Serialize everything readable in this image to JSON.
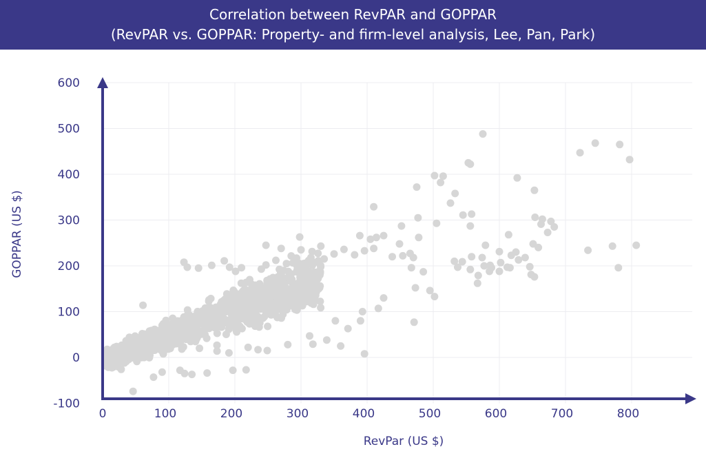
{
  "chart_data": {
    "type": "scatter",
    "title": "Correlation between RevPAR and GOPPAR",
    "subtitle": "(RevPAR vs. GOPPAR: Property- and firm-level analysis, Lee, Pan, Park)",
    "xlabel": "RevPar (US $)",
    "ylabel": "GOPPAR (US $)",
    "xlim": [
      0,
      880
    ],
    "ylim": [
      -100,
      600
    ],
    "xticks": [
      0,
      100,
      200,
      300,
      400,
      500,
      600,
      700,
      800
    ],
    "yticks": [
      -100,
      0,
      100,
      200,
      300,
      400,
      500,
      600
    ],
    "grid": true,
    "point_color": "#d6d6d6",
    "accent_color": "#3a3888",
    "cluster_note_hidden": {
      "n": 1400,
      "x_range": [
        5,
        330
      ],
      "slope": 0.55,
      "intercept": -6
    },
    "series": [
      {
        "points": [
          [
            575,
            488
          ],
          [
            745,
            468
          ],
          [
            782,
            465
          ],
          [
            722,
            447
          ],
          [
            797,
            432
          ],
          [
            553,
            425
          ],
          [
            556,
            422
          ],
          [
            502,
            397
          ],
          [
            515,
            396
          ],
          [
            511,
            382
          ],
          [
            627,
            392
          ],
          [
            475,
            372
          ],
          [
            533,
            358
          ],
          [
            653,
            365
          ],
          [
            526,
            337
          ],
          [
            410,
            329
          ],
          [
            545,
            311
          ],
          [
            558,
            313
          ],
          [
            654,
            306
          ],
          [
            477,
            305
          ],
          [
            665,
            302
          ],
          [
            452,
            287
          ],
          [
            663,
            291
          ],
          [
            678,
            297
          ],
          [
            683,
            285
          ],
          [
            505,
            293
          ],
          [
            556,
            287
          ],
          [
            673,
            273
          ],
          [
            298,
            263
          ],
          [
            425,
            266
          ],
          [
            389,
            266
          ],
          [
            414,
            262
          ],
          [
            405,
            258
          ],
          [
            478,
            262
          ],
          [
            614,
            268
          ],
          [
            247,
            245
          ],
          [
            330,
            243
          ],
          [
            270,
            238
          ],
          [
            449,
            248
          ],
          [
            579,
            245
          ],
          [
            651,
            248
          ],
          [
            659,
            240
          ],
          [
            734,
            234
          ],
          [
            771,
            243
          ],
          [
            807,
            245
          ],
          [
            600,
            231
          ],
          [
            625,
            230
          ],
          [
            618,
            223
          ],
          [
            629,
            213
          ],
          [
            639,
            218
          ],
          [
            558,
            220
          ],
          [
            574,
            218
          ],
          [
            532,
            210
          ],
          [
            544,
            209
          ],
          [
            602,
            207
          ],
          [
            612,
            197
          ],
          [
            616,
            196
          ],
          [
            586,
            201
          ],
          [
            577,
            200
          ],
          [
            556,
            192
          ],
          [
            537,
            197
          ],
          [
            568,
            179
          ],
          [
            585,
            188
          ],
          [
            600,
            188
          ],
          [
            588,
            196
          ],
          [
            646,
            198
          ],
          [
            653,
            176
          ],
          [
            648,
            181
          ],
          [
            780,
            196
          ],
          [
            467,
            196
          ],
          [
            485,
            187
          ],
          [
            495,
            146
          ],
          [
            502,
            133
          ],
          [
            567,
            162
          ],
          [
            473,
            152
          ],
          [
            438,
            220
          ],
          [
            454,
            222
          ],
          [
            470,
            218
          ],
          [
            465,
            227
          ],
          [
            123,
            208
          ],
          [
            184,
            211
          ],
          [
            192,
            197
          ],
          [
            201,
            188
          ],
          [
            210,
            196
          ],
          [
            145,
            195
          ],
          [
            165,
            201
          ],
          [
            128,
            197
          ],
          [
            240,
            193
          ],
          [
            247,
            202
          ],
          [
            61,
            114
          ],
          [
            471,
            77
          ],
          [
            390,
            80
          ],
          [
            396,
            8
          ],
          [
            360,
            25
          ],
          [
            371,
            63
          ],
          [
            352,
            80
          ],
          [
            393,
            100
          ],
          [
            425,
            130
          ],
          [
            417,
            107
          ],
          [
            90,
            -32
          ],
          [
            77,
            -43
          ],
          [
            46,
            -74
          ],
          [
            117,
            -28
          ],
          [
            124,
            -35
          ],
          [
            135,
            -37
          ],
          [
            158,
            -34
          ],
          [
            197,
            -28
          ],
          [
            217,
            -27
          ],
          [
            191,
            10
          ],
          [
            173,
            14
          ],
          [
            220,
            22
          ],
          [
            235,
            17
          ],
          [
            249,
            15
          ],
          [
            280,
            28
          ],
          [
            313,
            47
          ],
          [
            318,
            29
          ],
          [
            339,
            38
          ],
          [
            28,
            -26
          ],
          [
            16,
            -21
          ],
          [
            33,
            -12
          ],
          [
            300,
            235
          ],
          [
            315,
            218
          ],
          [
            262,
            212
          ],
          [
            278,
            205
          ],
          [
            335,
            215
          ],
          [
            350,
            226
          ],
          [
            365,
            236
          ],
          [
            381,
            224
          ],
          [
            396,
            233
          ],
          [
            410,
            238
          ]
        ]
      }
    ]
  }
}
